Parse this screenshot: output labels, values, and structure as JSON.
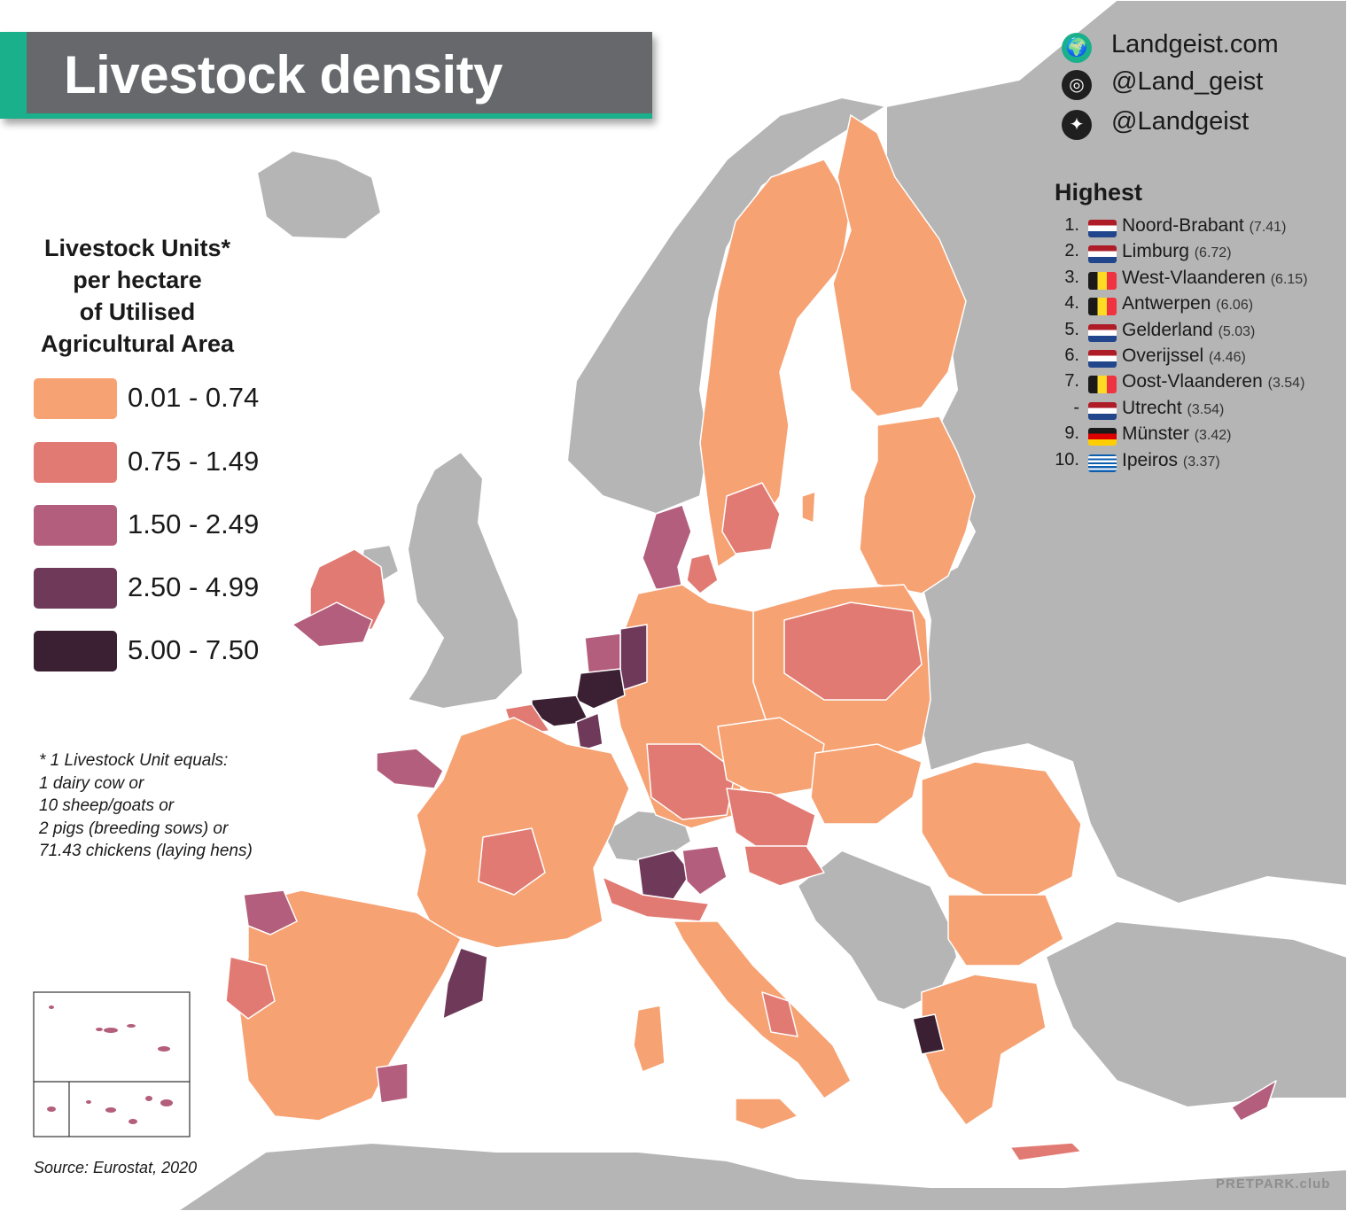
{
  "title": "Livestock density",
  "social": [
    {
      "icon": "globe-icon",
      "glyph": "🌍",
      "text": "Landgeist.com"
    },
    {
      "icon": "instagram-icon",
      "glyph": "◎",
      "text": "@Land_geist"
    },
    {
      "icon": "twitter-icon",
      "glyph": "✦",
      "text": "@Landgeist"
    }
  ],
  "legend": {
    "title_lines": [
      "Livestock Units*",
      "per hectare",
      "of Utilised",
      "Agricultural Area"
    ],
    "items": [
      {
        "label": "0.01  -  0.74",
        "color": "#f6a273"
      },
      {
        "label": "0.75  -  1.49",
        "color": "#e17a73"
      },
      {
        "label": "1.50  -  2.49",
        "color": "#b35e7c"
      },
      {
        "label": "2.50  -  4.99",
        "color": "#6f3a5a"
      },
      {
        "label": "5.00  -  7.50",
        "color": "#3b2033"
      }
    ]
  },
  "highest": {
    "title": "Highest",
    "items": [
      {
        "rank": "1.",
        "flag": "nl",
        "name": "Noord-Brabant",
        "value": "(7.41)"
      },
      {
        "rank": "2.",
        "flag": "nl",
        "name": "Limburg",
        "value": "(6.72)"
      },
      {
        "rank": "3.",
        "flag": "be",
        "name": "West-Vlaanderen",
        "value": "(6.15)"
      },
      {
        "rank": "4.",
        "flag": "be",
        "name": "Antwerpen",
        "value": "(6.06)"
      },
      {
        "rank": "5.",
        "flag": "nl",
        "name": "Gelderland",
        "value": "(5.03)"
      },
      {
        "rank": "6.",
        "flag": "nl",
        "name": "Overijssel",
        "value": "(4.46)"
      },
      {
        "rank": "7.",
        "flag": "be",
        "name": "Oost-Vlaanderen",
        "value": "(3.54)"
      },
      {
        "rank": "-",
        "flag": "nl",
        "name": "Utrecht",
        "value": "(3.54)"
      },
      {
        "rank": "9.",
        "flag": "de",
        "name": "Münster",
        "value": "(3.42)"
      },
      {
        "rank": "10.",
        "flag": "gr",
        "name": "Ipeiros",
        "value": "(3.37)"
      }
    ]
  },
  "footnote_lines": [
    "* 1 Livestock Unit equals:",
    "1 dairy cow or",
    "10 sheep/goats or",
    "2 pigs (breeding sows) or",
    "71.43 chickens (laying hens)"
  ],
  "source": "Source: Eurostat, 2020",
  "watermark": "PRETPARK.club",
  "colors": {
    "land_nodata": "#b5b5b5",
    "sea": "#ffffff",
    "title_bg": "#66686b",
    "accent": "#1bb08c"
  }
}
